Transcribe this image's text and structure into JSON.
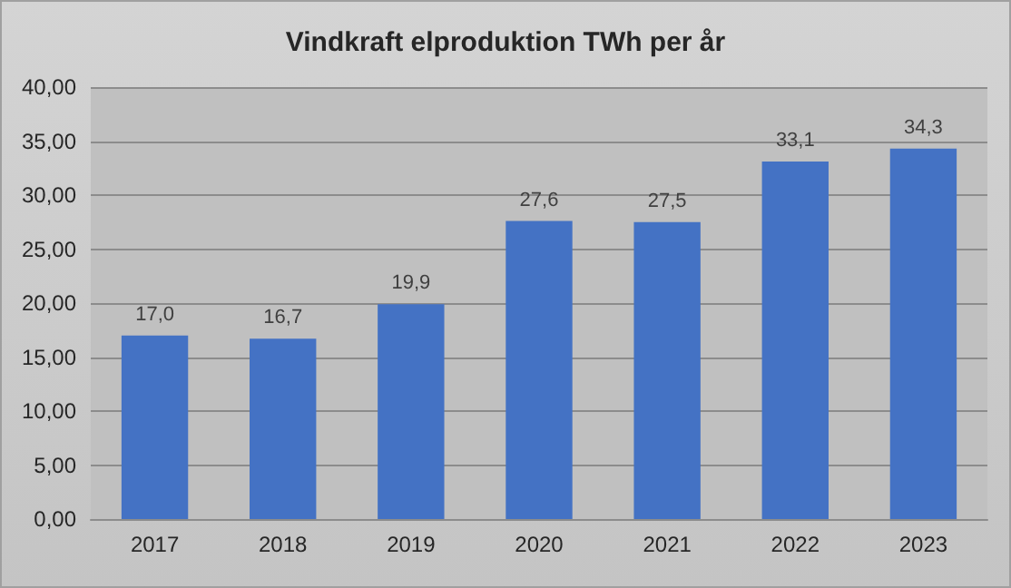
{
  "chart_data": {
    "type": "bar",
    "title": "Vindkraft elproduktion TWh per år",
    "categories": [
      "2017",
      "2018",
      "2019",
      "2020",
      "2021",
      "2022",
      "2023"
    ],
    "values": [
      17.0,
      16.7,
      19.9,
      27.6,
      27.5,
      33.1,
      34.3
    ],
    "value_labels": [
      "17,0",
      "16,7",
      "19,9",
      "27,6",
      "27,5",
      "33,1",
      "34,3"
    ],
    "color": "#4472c4",
    "ylim": [
      0,
      40
    ],
    "yticks": [
      {
        "value": 0,
        "label": "0,00"
      },
      {
        "value": 5,
        "label": "5,00"
      },
      {
        "value": 10,
        "label": "10,00"
      },
      {
        "value": 15,
        "label": "15,00"
      },
      {
        "value": 20,
        "label": "20,00"
      },
      {
        "value": 25,
        "label": "25,00"
      },
      {
        "value": 30,
        "label": "30,00"
      },
      {
        "value": 35,
        "label": "35,00"
      },
      {
        "value": 40,
        "label": "40,00"
      }
    ],
    "grid": "y"
  }
}
